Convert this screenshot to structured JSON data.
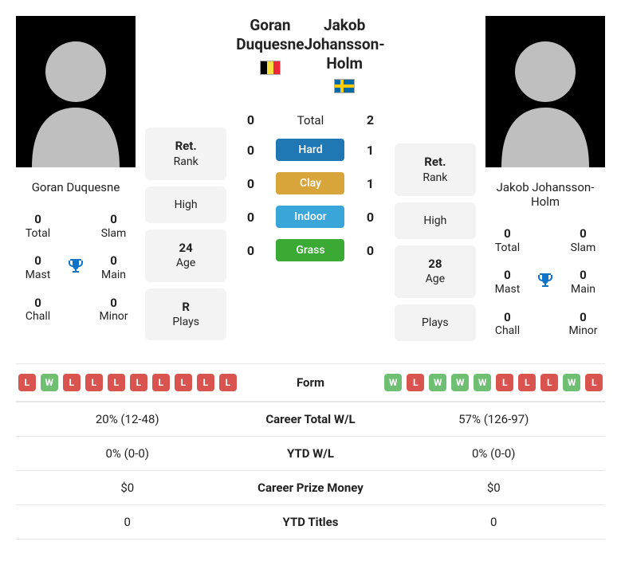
{
  "colors": {
    "hard": "#1f78b4",
    "clay": "#d8a53b",
    "indoor": "#3aa5d8",
    "grass": "#3aaa35",
    "win": "#6fbf73",
    "loss": "#d9534f",
    "trophy": "#0f74c7"
  },
  "p1": {
    "name": "Goran Duquesne",
    "flag": "be",
    "stats": {
      "total": "0",
      "slam": "0",
      "mast": "0",
      "main": "0",
      "chall": "0",
      "minor": "0"
    },
    "rank": {
      "ret": "Ret.",
      "high": "",
      "age": "24",
      "plays": "R"
    }
  },
  "p2": {
    "name": "Jakob Johansson-Holm",
    "flag": "se",
    "stats": {
      "total": "0",
      "slam": "0",
      "mast": "0",
      "main": "0",
      "chall": "0",
      "minor": "0"
    },
    "rank": {
      "ret": "Ret.",
      "high": "",
      "age": "28",
      "plays": ""
    }
  },
  "h2h": {
    "total": {
      "label": "Total",
      "p1": "0",
      "p2": "2"
    },
    "surfaces": [
      {
        "label": "Hard",
        "p1": "0",
        "p2": "1",
        "colorKey": "hard"
      },
      {
        "label": "Clay",
        "p1": "0",
        "p2": "1",
        "colorKey": "clay"
      },
      {
        "label": "Indoor",
        "p1": "0",
        "p2": "0",
        "colorKey": "indoor"
      },
      {
        "label": "Grass",
        "p1": "0",
        "p2": "0",
        "colorKey": "grass"
      }
    ]
  },
  "labels": {
    "total": "Total",
    "slam": "Slam",
    "mast": "Mast",
    "main": "Main",
    "chall": "Chall",
    "minor": "Minor",
    "rank": "Rank",
    "high": "High",
    "age": "Age",
    "plays": "Plays"
  },
  "form": {
    "label": "Form",
    "p1": [
      "L",
      "W",
      "L",
      "L",
      "L",
      "L",
      "L",
      "L",
      "L",
      "L"
    ],
    "p2": [
      "W",
      "L",
      "W",
      "W",
      "W",
      "L",
      "L",
      "L",
      "W",
      "L"
    ]
  },
  "rows": [
    {
      "label": "Career Total W/L",
      "p1": "20% (12-48)",
      "p2": "57% (126-97)"
    },
    {
      "label": "YTD W/L",
      "p1": "0% (0-0)",
      "p2": "0% (0-0)"
    },
    {
      "label": "Career Prize Money",
      "p1": "$0",
      "p2": "$0"
    },
    {
      "label": "YTD Titles",
      "p1": "0",
      "p2": "0"
    }
  ]
}
